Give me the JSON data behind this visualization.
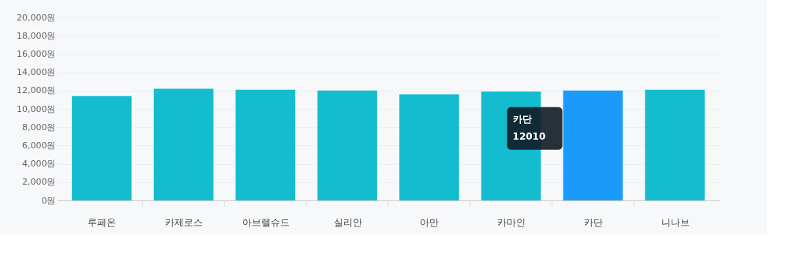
{
  "chart_data": {
    "type": "bar",
    "categories": [
      "루페온",
      "카제로스",
      "아브렐슈드",
      "실리안",
      "아만",
      "카마인",
      "카단",
      "니나브"
    ],
    "values": [
      11400,
      12200,
      12100,
      12000,
      11600,
      11900,
      12010,
      12100
    ],
    "colors": [
      "#14bcd0",
      "#14bcd0",
      "#14bcd0",
      "#14bcd0",
      "#14bcd0",
      "#14bcd0",
      "#1a9bfc",
      "#14bcd0"
    ],
    "ylim": [
      0,
      20000
    ],
    "yticks": [
      {
        "value": 0,
        "label": "0원"
      },
      {
        "value": 2000,
        "label": "2,000원"
      },
      {
        "value": 4000,
        "label": "4,000원"
      },
      {
        "value": 6000,
        "label": "6,000원"
      },
      {
        "value": 8000,
        "label": "8,000원"
      },
      {
        "value": 10000,
        "label": "10,000원"
      },
      {
        "value": 12000,
        "label": "12,000원"
      },
      {
        "value": 14000,
        "label": "14,000원"
      },
      {
        "value": 16000,
        "label": "16,000원"
      },
      {
        "value": 18000,
        "label": "18,000원"
      },
      {
        "value": 20000,
        "label": "20,000원"
      }
    ],
    "grid": "y",
    "annotations": [
      "카단",
      "12010"
    ]
  }
}
